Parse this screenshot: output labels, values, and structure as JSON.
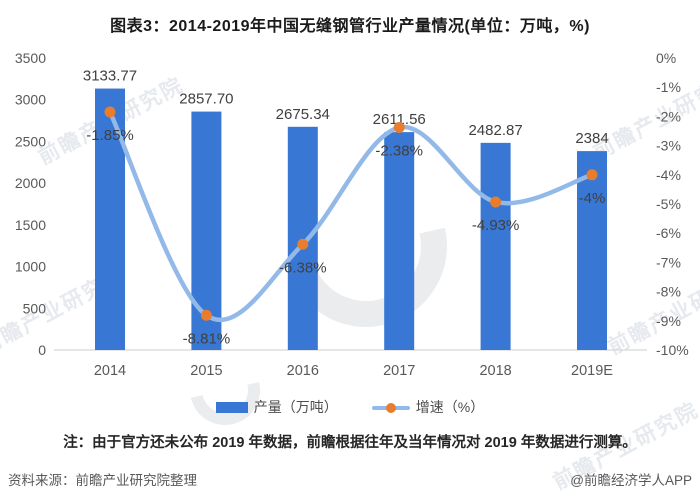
{
  "title": "图表3：2014-2019年中国无缝钢管行业产量情况(单位：万吨，%)",
  "note": "注：由于官方还未公布 2019 年数据，前瞻根据往年及当年情况对 2019 年数据进行测算。",
  "source": "资料来源：前瞻产业研究院整理",
  "credit": "@前瞻经济学人APP",
  "watermark": {
    "text": "前瞻产业研究院"
  },
  "colors": {
    "bar": "#3877d4",
    "line": "#93b9e8",
    "marker": "#e87d2e",
    "axis_text": "#595959",
    "value_text": "#404040",
    "baseline": "#d6d6d6"
  },
  "chart_data": {
    "type": "bar",
    "combo": "bar+line",
    "title": "图表3：2014-2019年中国无缝钢管行业产量情况(单位：万吨，%)",
    "categories": [
      "2014",
      "2015",
      "2016",
      "2017",
      "2018",
      "2019E"
    ],
    "series": [
      {
        "name": "产量（万吨）",
        "type": "bar",
        "axis": "left",
        "values": [
          3133.77,
          2857.7,
          2675.34,
          2611.56,
          2482.87,
          2384
        ],
        "labels": [
          "3133.77",
          "2857.70",
          "2675.34",
          "2611.56",
          "2482.87",
          "2384"
        ]
      },
      {
        "name": "增速（%）",
        "type": "line",
        "axis": "right",
        "values": [
          -1.85,
          -8.81,
          -6.38,
          -2.38,
          -4.93,
          -4
        ],
        "labels": [
          "-1.85%",
          "-8.81%",
          "-6.38%",
          "-2.38%",
          "-4.93%",
          "-4%"
        ]
      }
    ],
    "left_axis": {
      "min": 0,
      "max": 3500,
      "step": 500,
      "ticks": [
        "3500",
        "3000",
        "2500",
        "2000",
        "1500",
        "1000",
        "500",
        "0"
      ]
    },
    "right_axis": {
      "min": -10,
      "max": 0,
      "step": 1,
      "ticks": [
        "0%",
        "-1%",
        "-2%",
        "-3%",
        "-4%",
        "-5%",
        "-6%",
        "-7%",
        "-8%",
        "-9%",
        "-10%"
      ]
    },
    "grid": false,
    "legend_position": "bottom"
  }
}
